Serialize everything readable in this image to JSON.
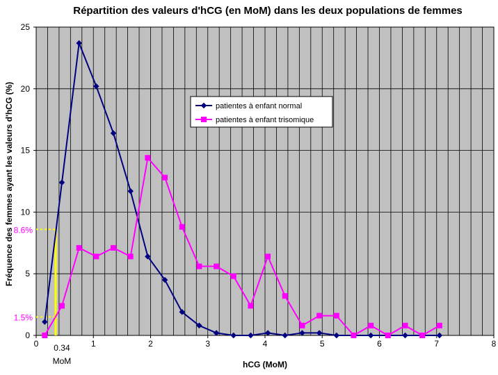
{
  "chart_data": {
    "type": "line",
    "title": "Répartition des valeurs d'hCG (en MoM) dans les deux populations de femmes",
    "xlabel": "hCG (MoM)",
    "ylabel": "Fréquence des femmes ayant les valeurs d'hCG (%)",
    "xlim": [
      0,
      8
    ],
    "ylim": [
      0,
      25
    ],
    "xticks": [
      0,
      1,
      2,
      3,
      4,
      5,
      6,
      7,
      8
    ],
    "yticks": [
      0,
      5,
      10,
      15,
      20,
      25
    ],
    "grid": true,
    "legend_position": "upper-middle",
    "colors": {
      "plot_bg": "#c0c0c0",
      "grid": "#000000",
      "annotation": "#ffff00",
      "annotation_text": "#ff00ff"
    },
    "series": [
      {
        "name": "patientes à enfant normal",
        "color": "#000080",
        "marker": "diamond",
        "x": [
          0.15,
          0.45,
          0.75,
          1.05,
          1.35,
          1.65,
          1.95,
          2.25,
          2.55,
          2.85,
          3.15,
          3.45,
          3.75,
          4.05,
          4.35,
          4.65,
          4.95,
          5.25,
          5.55,
          5.85,
          6.15,
          6.45,
          6.75,
          7.05
        ],
        "y": [
          1.1,
          12.4,
          23.7,
          20.2,
          16.4,
          11.7,
          6.4,
          4.5,
          1.9,
          0.8,
          0.2,
          0.0,
          0.0,
          0.2,
          0.0,
          0.2,
          0.2,
          0.0,
          0.0,
          0.0,
          0.0,
          0.0,
          0.0,
          0.0
        ]
      },
      {
        "name": "patientes à enfant trisomique",
        "color": "#ff00ff",
        "marker": "square",
        "x": [
          0.15,
          0.45,
          0.75,
          1.05,
          1.35,
          1.65,
          1.95,
          2.25,
          2.55,
          2.85,
          3.15,
          3.45,
          3.75,
          4.05,
          4.35,
          4.65,
          4.95,
          5.25,
          5.55,
          5.85,
          6.15,
          6.45,
          6.75,
          7.05
        ],
        "y": [
          0.0,
          2.4,
          7.1,
          6.4,
          7.1,
          6.4,
          14.4,
          12.8,
          8.8,
          5.6,
          5.6,
          4.8,
          2.4,
          6.4,
          3.2,
          0.8,
          1.6,
          1.6,
          0.0,
          0.8,
          0.0,
          0.8,
          0.0,
          0.8
        ]
      }
    ],
    "annotations": {
      "cutoff_x": 0.34,
      "cutoff_x_label": "0.34",
      "cutoff_unit_label": "MoM",
      "level_high": 8.6,
      "level_high_label": "8.6%",
      "level_low": 1.5,
      "level_low_label": "1.5%"
    }
  }
}
